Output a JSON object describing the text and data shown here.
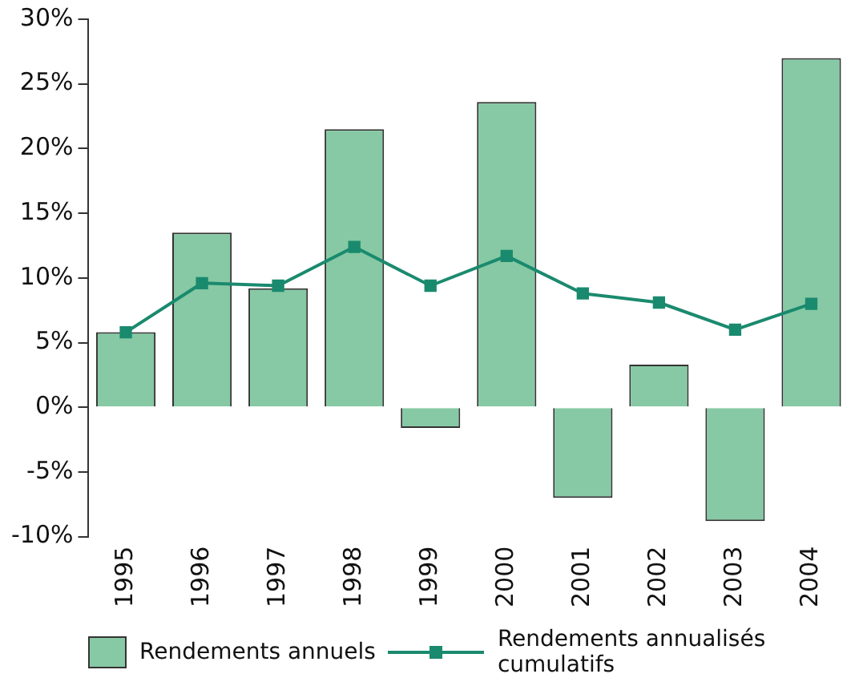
{
  "chart_data": {
    "type": "bar",
    "categories": [
      "1995",
      "1996",
      "1997",
      "1998",
      "1999",
      "2000",
      "2001",
      "2002",
      "2003",
      "2004"
    ],
    "series": [
      {
        "name": "Rendements annuels",
        "color": "#86c9a4",
        "values": [
          5.8,
          13.5,
          9.2,
          21.5,
          -1.6,
          23.6,
          -7.0,
          3.3,
          -8.8,
          27.0
        ]
      },
      {
        "name": "Rendements annualisés cumulatifs",
        "type": "line",
        "color": "#1a8a6e",
        "values": [
          5.8,
          9.6,
          9.4,
          12.4,
          9.4,
          11.7,
          8.8,
          8.1,
          6.0,
          8.0
        ]
      }
    ],
    "ylim": [
      -10,
      30
    ],
    "yticks": [
      {
        "value": -10,
        "label": "-10%"
      },
      {
        "value": -5,
        "label": "-5%"
      },
      {
        "value": 0,
        "label": "0%"
      },
      {
        "value": 5,
        "label": "5%"
      },
      {
        "value": 10,
        "label": "10%"
      },
      {
        "value": 15,
        "label": "15%"
      },
      {
        "value": 20,
        "label": "20%"
      },
      {
        "value": 25,
        "label": "25%"
      },
      {
        "value": 30,
        "label": "30%"
      }
    ],
    "grid": false,
    "legend": "bottom",
    "marker": "square",
    "line_style": "solid"
  }
}
